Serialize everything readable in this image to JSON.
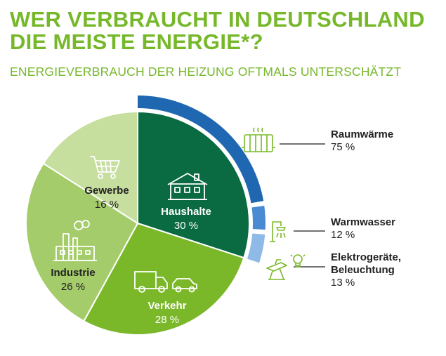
{
  "title_line1": "WER VERBRAUCHT IN DEUTSCHLAND",
  "title_line2": "DIE MEISTE ENERGIE*?",
  "subtitle": "ENERGIEVERBRAUCH DER HEIZUNG OFTMALS UNTERSCHÄTZT",
  "colors": {
    "title": "#76b82a",
    "haushalte": "#0a6a42",
    "verkehr": "#7ab829",
    "industrie": "#a5cc6b",
    "gewerbe": "#c6de9e",
    "raum": "#1f67b1",
    "warm": "#4a8ad2",
    "elektro": "#8fb9e6"
  },
  "chart_data": {
    "type": "pie",
    "title": "WER VERBRAUCHT IN DEUTSCHLAND DIE MEISTE ENERGIE*?",
    "subtitle": "ENERGIEVERBRAUCH DER HEIZUNG OFTMALS UNTERSCHÄTZT",
    "slices": [
      {
        "key": "haushalte",
        "name": "Haushalte",
        "value": 30,
        "label": "30 %",
        "icon": "house-icon"
      },
      {
        "key": "verkehr",
        "name": "Verkehr",
        "value": 28,
        "label": "28 %",
        "icon": "truck-car-icon"
      },
      {
        "key": "industrie",
        "name": "Industrie",
        "value": 26,
        "label": "26 %",
        "icon": "factory-icon"
      },
      {
        "key": "gewerbe",
        "name": "Gewerbe",
        "value": 16,
        "label": "16 %",
        "icon": "shopping-cart-icon"
      }
    ],
    "breakdown": {
      "of": "Haushalte",
      "items": [
        {
          "key": "raum",
          "name": "Raumwärme",
          "value": 75,
          "label": "75 %",
          "icon": "radiator-icon"
        },
        {
          "key": "warm",
          "name": "Warmwasser",
          "value": 12,
          "label": "12 %",
          "icon": "shower-icon"
        },
        {
          "key": "elektro",
          "name_lines": [
            "Elektrogeräte,",
            "Beleuchtung"
          ],
          "value": 13,
          "label": "13 %",
          "icon": "iron-lightbulb-icon"
        }
      ]
    }
  }
}
